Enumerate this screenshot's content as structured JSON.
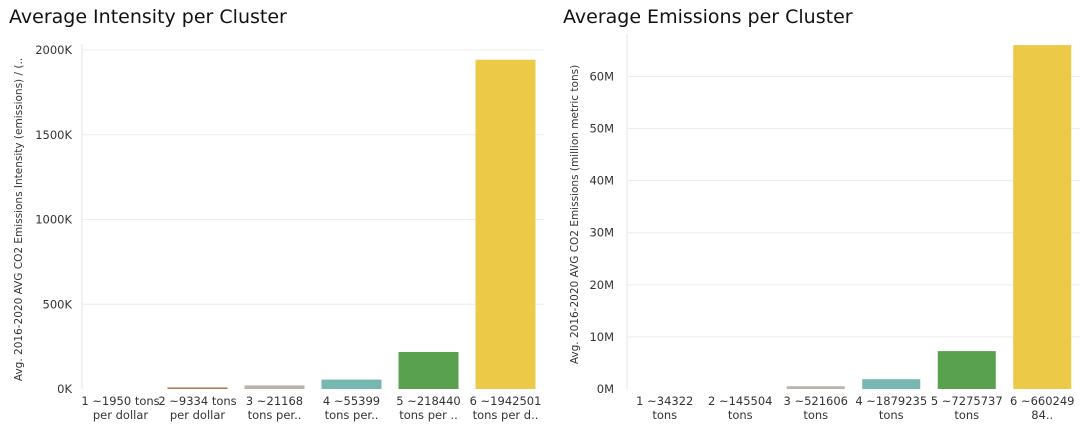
{
  "chart_data": [
    {
      "type": "bar",
      "title": "Average Intensity per Cluster",
      "xlabel": "",
      "ylabel": "Avg. 2016-2020 AVG CO2 Emissions Intensity (emissions) / (..",
      "ylim": [
        0,
        2000000
      ],
      "grid": true,
      "categories": [
        [
          "1 ~1950 tons",
          "per dollar"
        ],
        [
          "2 ~9334 tons",
          "per dollar"
        ],
        [
          "3 ~21168",
          "tons per.."
        ],
        [
          "4 ~55399",
          "tons per.."
        ],
        [
          "5 ~218440",
          "tons per .."
        ],
        [
          "6 ~1942501",
          "tons per d.."
        ]
      ],
      "values": [
        1950,
        9334,
        21168,
        55399,
        218440,
        1942501
      ],
      "colors": [
        "#4e79a7",
        "#b07a50",
        "#bab0ac",
        "#76b7b2",
        "#59a14f",
        "#edc948"
      ],
      "yticks": [
        {
          "value": 0,
          "label": "0K"
        },
        {
          "value": 500000,
          "label": "500K"
        },
        {
          "value": 1000000,
          "label": "1000K"
        },
        {
          "value": 1500000,
          "label": "1500K"
        },
        {
          "value": 2000000,
          "label": "2000K"
        }
      ]
    },
    {
      "type": "bar",
      "title": "Average Emissions per Cluster",
      "xlabel": "",
      "ylabel": "Avg. 2016-2020 AVG CO2 Emissions (million metric tons)",
      "ylim": [
        0,
        67000000
      ],
      "grid": true,
      "categories": [
        [
          "1 ~34322",
          "tons"
        ],
        [
          "2 ~145504",
          "tons"
        ],
        [
          "3 ~521606",
          "tons"
        ],
        [
          "4 ~1879235",
          "tons"
        ],
        [
          "5 ~7275737",
          "tons"
        ],
        [
          "6 ~660249",
          "84.."
        ]
      ],
      "values": [
        34322,
        145504,
        521606,
        1879235,
        7275737,
        66024984
      ],
      "colors": [
        "#4e79a7",
        "#b07a50",
        "#bab0ac",
        "#76b7b2",
        "#59a14f",
        "#edc948"
      ],
      "yticks": [
        {
          "value": 0,
          "label": "0M"
        },
        {
          "value": 10000000,
          "label": "10M"
        },
        {
          "value": 20000000,
          "label": "20M"
        },
        {
          "value": 30000000,
          "label": "30M"
        },
        {
          "value": 40000000,
          "label": "40M"
        },
        {
          "value": 50000000,
          "label": "50M"
        },
        {
          "value": 60000000,
          "label": "60M"
        }
      ]
    }
  ]
}
